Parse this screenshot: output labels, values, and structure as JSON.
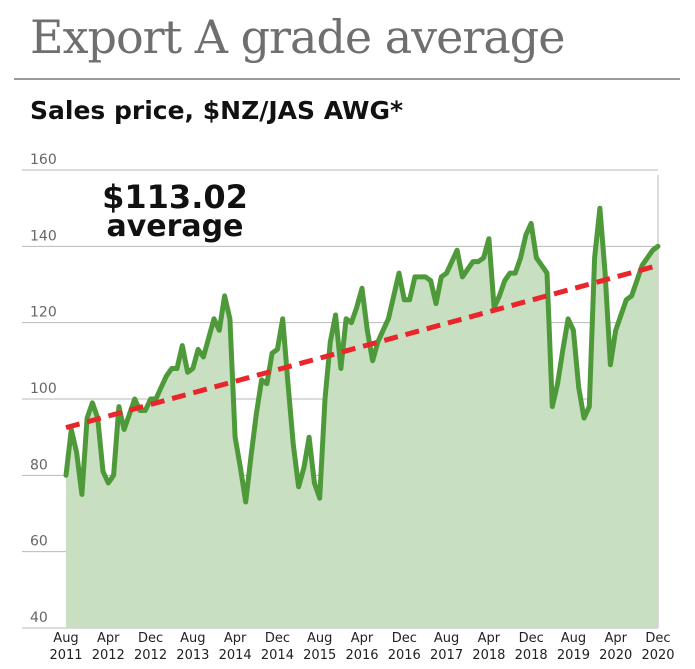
{
  "title": "Export A grade average",
  "subtitle": "Sales price, $NZ/JAS AWG*",
  "colors": {
    "line": "#4e9a3a",
    "area": "#c9dfc1",
    "trend": "#e8262b",
    "grid": "#b9b9b9",
    "title": "#6f6f6f"
  },
  "chart_data": {
    "type": "line",
    "title": "Export A grade average",
    "subtitle": "Sales price, $NZ/JAS AWG*",
    "xlabel": "",
    "ylabel": "",
    "ylim": [
      40,
      160
    ],
    "yticks": [
      40,
      60,
      80,
      100,
      120,
      140,
      160
    ],
    "xlim": [
      "2011-08",
      "2020-12"
    ],
    "grid": true,
    "x_tick_labels": [
      {
        "month": "2011-08",
        "top": "Aug",
        "bottom": "2011"
      },
      {
        "month": "2012-04",
        "top": "Apr",
        "bottom": "2012"
      },
      {
        "month": "2012-12",
        "top": "Dec",
        "bottom": "2012"
      },
      {
        "month": "2013-08",
        "top": "Aug",
        "bottom": "2013"
      },
      {
        "month": "2014-04",
        "top": "Apr",
        "bottom": "2014"
      },
      {
        "month": "2014-12",
        "top": "Dec",
        "bottom": "2014"
      },
      {
        "month": "2015-08",
        "top": "Aug",
        "bottom": "2015"
      },
      {
        "month": "2016-04",
        "top": "Apr",
        "bottom": "2016"
      },
      {
        "month": "2016-12",
        "top": "Dec",
        "bottom": "2016"
      },
      {
        "month": "2017-08",
        "top": "Aug",
        "bottom": "2017"
      },
      {
        "month": "2018-04",
        "top": "Apr",
        "bottom": "2018"
      },
      {
        "month": "2018-12",
        "top": "Dec",
        "bottom": "2018"
      },
      {
        "month": "2019-08",
        "top": "Aug",
        "bottom": "2019"
      },
      {
        "month": "2020-04",
        "top": "Apr",
        "bottom": "2020"
      },
      {
        "month": "2020-12",
        "top": "Dec",
        "bottom": "2020"
      }
    ],
    "series": [
      {
        "name": "",
        "points": [
          [
            "2011-08",
            80
          ],
          [
            "2011-09",
            92
          ],
          [
            "2011-10",
            86
          ],
          [
            "2011-11",
            75
          ],
          [
            "2011-12",
            95
          ],
          [
            "2012-01",
            99
          ],
          [
            "2012-02",
            95
          ],
          [
            "2012-03",
            81
          ],
          [
            "2012-04",
            78
          ],
          [
            "2012-05",
            80
          ],
          [
            "2012-06",
            98
          ],
          [
            "2012-07",
            92
          ],
          [
            "2012-08",
            96
          ],
          [
            "2012-09",
            100
          ],
          [
            "2012-10",
            97
          ],
          [
            "2012-11",
            97
          ],
          [
            "2012-12",
            100
          ],
          [
            "2013-01",
            100
          ],
          [
            "2013-02",
            103
          ],
          [
            "2013-03",
            106
          ],
          [
            "2013-04",
            108
          ],
          [
            "2013-05",
            108
          ],
          [
            "2013-06",
            114
          ],
          [
            "2013-07",
            107
          ],
          [
            "2013-08",
            108
          ],
          [
            "2013-09",
            113
          ],
          [
            "2013-10",
            111
          ],
          [
            "2013-11",
            116
          ],
          [
            "2013-12",
            121
          ],
          [
            "2014-01",
            118
          ],
          [
            "2014-02",
            127
          ],
          [
            "2014-03",
            121
          ],
          [
            "2014-04",
            90
          ],
          [
            "2014-05",
            82
          ],
          [
            "2014-06",
            73
          ],
          [
            "2014-07",
            85
          ],
          [
            "2014-08",
            96
          ],
          [
            "2014-09",
            105
          ],
          [
            "2014-10",
            104
          ],
          [
            "2014-11",
            112
          ],
          [
            "2014-12",
            113
          ],
          [
            "2015-01",
            121
          ],
          [
            "2015-02",
            104
          ],
          [
            "2015-03",
            88
          ],
          [
            "2015-04",
            77
          ],
          [
            "2015-05",
            82
          ],
          [
            "2015-06",
            90
          ],
          [
            "2015-07",
            78
          ],
          [
            "2015-08",
            74
          ],
          [
            "2015-09",
            100
          ],
          [
            "2015-10",
            115
          ],
          [
            "2015-11",
            122
          ],
          [
            "2015-12",
            108
          ],
          [
            "2016-01",
            121
          ],
          [
            "2016-02",
            120
          ],
          [
            "2016-03",
            124
          ],
          [
            "2016-04",
            129
          ],
          [
            "2016-05",
            118
          ],
          [
            "2016-06",
            110
          ],
          [
            "2016-07",
            115
          ],
          [
            "2016-08",
            118
          ],
          [
            "2016-09",
            121
          ],
          [
            "2016-10",
            127
          ],
          [
            "2016-11",
            133
          ],
          [
            "2016-12",
            126
          ],
          [
            "2017-01",
            126
          ],
          [
            "2017-02",
            132
          ],
          [
            "2017-03",
            132
          ],
          [
            "2017-04",
            132
          ],
          [
            "2017-05",
            131
          ],
          [
            "2017-06",
            125
          ],
          [
            "2017-07",
            132
          ],
          [
            "2017-08",
            133
          ],
          [
            "2017-09",
            136
          ],
          [
            "2017-10",
            139
          ],
          [
            "2017-11",
            132
          ],
          [
            "2017-12",
            134
          ],
          [
            "2018-01",
            136
          ],
          [
            "2018-02",
            136
          ],
          [
            "2018-03",
            137
          ],
          [
            "2018-04",
            142
          ],
          [
            "2018-05",
            124
          ],
          [
            "2018-06",
            127
          ],
          [
            "2018-07",
            131
          ],
          [
            "2018-08",
            133
          ],
          [
            "2018-09",
            133
          ],
          [
            "2018-10",
            137
          ],
          [
            "2018-11",
            143
          ],
          [
            "2018-12",
            146
          ],
          [
            "2019-01",
            137
          ],
          [
            "2019-02",
            135
          ],
          [
            "2019-03",
            133
          ],
          [
            "2019-04",
            98
          ],
          [
            "2019-05",
            104
          ],
          [
            "2019-06",
            113
          ],
          [
            "2019-07",
            121
          ],
          [
            "2019-08",
            118
          ],
          [
            "2019-09",
            103
          ],
          [
            "2019-10",
            95
          ],
          [
            "2019-11",
            98
          ],
          [
            "2019-12",
            137
          ],
          [
            "2020-01",
            150
          ],
          [
            "2020-02",
            133
          ],
          [
            "2020-03",
            109
          ],
          [
            "2020-04",
            118
          ],
          [
            "2020-05",
            122
          ],
          [
            "2020-06",
            126
          ],
          [
            "2020-07",
            127
          ],
          [
            "2020-08",
            131
          ],
          [
            "2020-09",
            135
          ],
          [
            "2020-10",
            137
          ],
          [
            "2020-11",
            139
          ],
          [
            "2020-12",
            140
          ]
        ]
      }
    ],
    "trend_line": {
      "start": [
        "2011-08",
        92.5
      ],
      "end": [
        "2020-12",
        135
      ]
    },
    "annotation": {
      "value_text": "$113.02",
      "label_text": "average"
    }
  }
}
